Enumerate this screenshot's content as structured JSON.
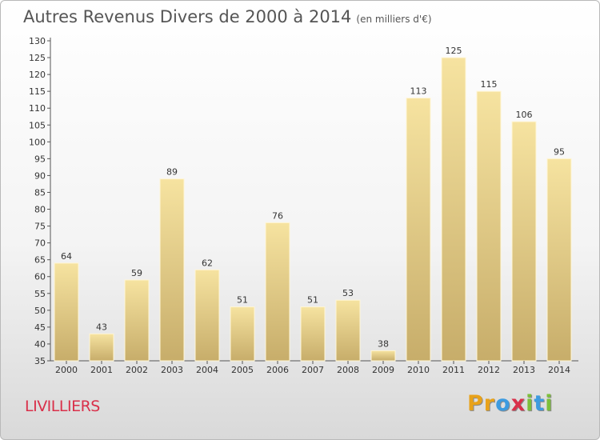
{
  "title": "Autres Revenus Divers de 2000 à 2014",
  "title_unit": "(en milliers d'€)",
  "place": "LIVILLIERS",
  "logo": {
    "letters": [
      "P",
      "r",
      "o",
      "x",
      "i",
      "t",
      "i"
    ],
    "colors": [
      "#e8a21a",
      "#e8a21a",
      "#3d9be0",
      "#d9304a",
      "#7cbf3a",
      "#3d9be0",
      "#7cbf3a"
    ]
  },
  "colors": {
    "bar_light": "#f6e3a0",
    "bar_dark": "#c7ad6a",
    "axis": "#555555",
    "text": "#333333",
    "place": "#d9304a"
  },
  "chart_data": {
    "type": "bar",
    "title": "Autres Revenus Divers de 2000 à 2014",
    "subtitle": "(en milliers d'€)",
    "categories": [
      "2000",
      "2001",
      "2002",
      "2003",
      "2004",
      "2005",
      "2006",
      "2007",
      "2008",
      "2009",
      "2010",
      "2011",
      "2012",
      "2013",
      "2014"
    ],
    "values": [
      64,
      43,
      59,
      89,
      62,
      51,
      76,
      51,
      53,
      38,
      113,
      125,
      115,
      106,
      95
    ],
    "ylim": [
      35,
      130
    ],
    "yticks": [
      35,
      40,
      45,
      50,
      55,
      60,
      65,
      70,
      75,
      80,
      85,
      90,
      95,
      100,
      105,
      110,
      115,
      120,
      125,
      130
    ],
    "grid": false,
    "data_labels": true
  }
}
